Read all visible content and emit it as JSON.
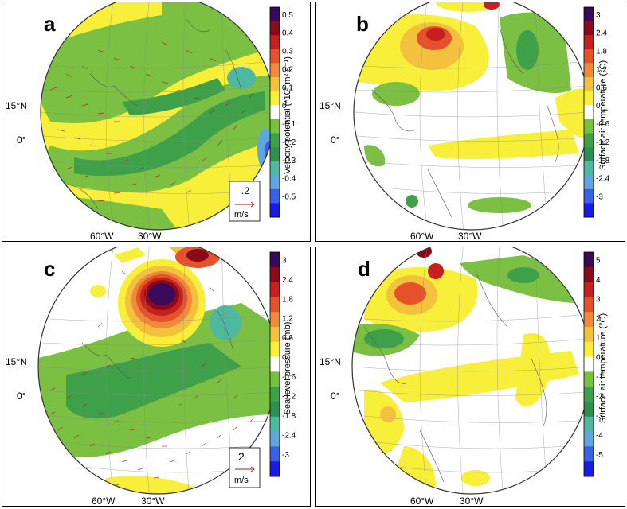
{
  "panels": [
    {
      "letter": "a",
      "cbar_label": "Velocity potential (*10⁵ m² s⁻¹)",
      "ticks": [
        "0.5",
        "0.4",
        "0.3",
        "0.2",
        "0.1",
        "0",
        "-0.1",
        "-0.2",
        "-0.3",
        "-0.4",
        "-0.5"
      ],
      "lon_labels": [
        "60°W",
        "30°W"
      ],
      "lat_labels": [
        "15°N",
        "0°"
      ],
      "ref_value": ".2",
      "ref_unit": "m/s"
    },
    {
      "letter": "b",
      "cbar_label": "Surface air temperature (°C)",
      "ticks": [
        "3",
        "2.4",
        "1.8",
        "1.2",
        "0.6",
        "0",
        "-0.6",
        "-1.2",
        "-1.8",
        "-2.4",
        "-3"
      ],
      "lon_labels": [
        "60°W",
        "30°W"
      ],
      "lat_labels": [
        "15°N",
        "0°"
      ]
    },
    {
      "letter": "c",
      "cbar_label": "Sea level pressure (mb)",
      "ticks": [
        "3",
        "2.4",
        "1.8",
        "1.2",
        "0.6",
        "0",
        "-0.6",
        "-1.2",
        "-1.8",
        "-2.4",
        "-3"
      ],
      "lon_labels": [
        "60°W",
        "30°W"
      ],
      "lat_labels": [
        "15°N",
        "0°"
      ],
      "ref_value": "2",
      "ref_unit": "m/s"
    },
    {
      "letter": "d",
      "cbar_label": "Surface air temperature (°C)",
      "ticks": [
        "5",
        "4",
        "3",
        "2",
        "1",
        "0",
        "-1",
        "-2",
        "-3",
        "-4",
        "-5"
      ],
      "lon_labels": [
        "60°W",
        "30°W"
      ],
      "lat_labels": [
        "15°N",
        "0°"
      ]
    }
  ],
  "colors": {
    "palette": [
      "#3a0a5a",
      "#8b0a1a",
      "#c51f1f",
      "#e6502a",
      "#f08a3a",
      "#f4c13e",
      "#f7ef3a",
      "#ffffff",
      "#74c23f",
      "#3ea14a",
      "#2f8f50",
      "#4fb8a0",
      "#5fa6e0",
      "#3a5fe8",
      "#1a1ae6"
    ]
  }
}
